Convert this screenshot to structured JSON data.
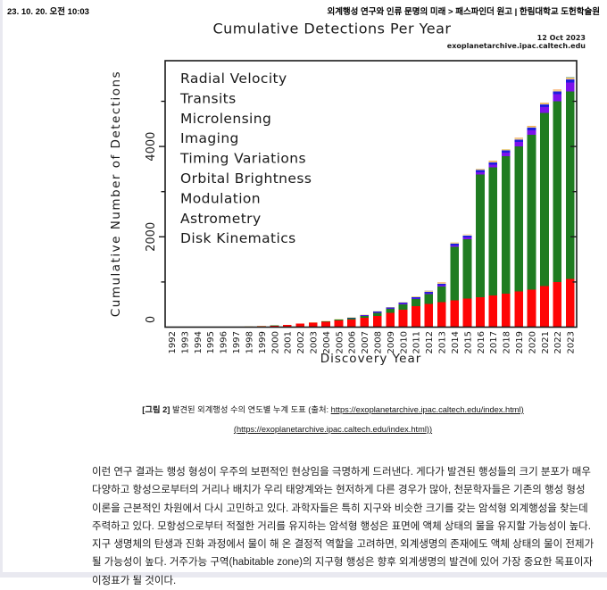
{
  "page": {
    "header_left": "23. 10. 20. 오전 10:03",
    "header_right": "외계행성 연구와 인류 문명의 미래 > 패스파인더 원고 | 한림대학교 도헌학술원"
  },
  "chart_data": {
    "type": "bar",
    "stacked": true,
    "title": "Cumulative Detections Per Year",
    "date_label": "12 Oct 2023",
    "source_label": "exoplanetarchive.ipac.caltech.edu",
    "xlabel": "Discovery Year",
    "ylabel": "Cumulative Number of Detections",
    "ylim": [
      0,
      5900
    ],
    "yticks_major": [
      0,
      2000,
      4000
    ],
    "yticks_minor": [
      1000,
      3000,
      5000
    ],
    "grid": false,
    "legend_position": "upper-left-inside",
    "categories": [
      1992,
      1993,
      1994,
      1995,
      1996,
      1997,
      1998,
      1999,
      2000,
      2001,
      2002,
      2003,
      2004,
      2005,
      2006,
      2007,
      2008,
      2009,
      2010,
      2011,
      2012,
      2013,
      2014,
      2015,
      2016,
      2017,
      2018,
      2019,
      2020,
      2021,
      2022,
      2023
    ],
    "series": [
      {
        "name": "Radial Velocity",
        "color": "#fe0505",
        "values": [
          0,
          0,
          0,
          1,
          6,
          8,
          14,
          22,
          34,
          46,
          75,
          96,
          117,
          150,
          172,
          205,
          252,
          317,
          390,
          468,
          512,
          550,
          590,
          628,
          665,
          700,
          745,
          792,
          835,
          905,
          1000,
          1068
        ]
      },
      {
        "name": "Transits",
        "color": "#1f7c21",
        "values": [
          0,
          0,
          0,
          0,
          0,
          0,
          0,
          1,
          1,
          1,
          2,
          3,
          8,
          14,
          24,
          44,
          64,
          88,
          115,
          150,
          218,
          345,
          1185,
          1315,
          2715,
          2840,
          3040,
          3215,
          3420,
          3835,
          4000,
          4150
        ]
      },
      {
        "name": "Microlensing",
        "color": "#7d12ea",
        "values": [
          0,
          0,
          0,
          0,
          0,
          0,
          0,
          0,
          0,
          0,
          0,
          0,
          1,
          3,
          5,
          7,
          10,
          13,
          15,
          19,
          24,
          30,
          37,
          44,
          52,
          62,
          77,
          92,
          107,
          132,
          155,
          200
        ]
      },
      {
        "name": "Imaging",
        "color": "#1e1ede",
        "values": [
          0,
          0,
          0,
          0,
          0,
          0,
          0,
          0,
          0,
          0,
          0,
          0,
          2,
          5,
          9,
          12,
          16,
          19,
          23,
          27,
          31,
          36,
          41,
          44,
          47,
          49,
          52,
          55,
          58,
          61,
          63,
          68
        ]
      },
      {
        "name": "Timing Variations",
        "color": "#ecd28d",
        "values": [
          2,
          3,
          4,
          4,
          4,
          4,
          4,
          5,
          5,
          6,
          6,
          7,
          7,
          7,
          8,
          9,
          10,
          11,
          13,
          15,
          17,
          19,
          21,
          23,
          25,
          26,
          27,
          28,
          29,
          30,
          31,
          31
        ]
      },
      {
        "name": "Orbital Brightness Modulation",
        "color": "#f5861f",
        "values": [
          0,
          0,
          0,
          0,
          0,
          0,
          0,
          0,
          0,
          0,
          0,
          0,
          0,
          0,
          0,
          0,
          0,
          0,
          0,
          1,
          3,
          4,
          5,
          5,
          6,
          6,
          6,
          7,
          7,
          8,
          8,
          9
        ]
      },
      {
        "name": "Astrometry",
        "color": "#bcbcbc",
        "values": [
          0,
          0,
          0,
          0,
          0,
          0,
          0,
          0,
          0,
          0,
          0,
          0,
          0,
          0,
          0,
          0,
          0,
          0,
          1,
          1,
          1,
          1,
          1,
          1,
          1,
          1,
          1,
          1,
          1,
          2,
          2,
          3
        ]
      },
      {
        "name": "Disk Kinematics",
        "color": "#3fa18c",
        "values": [
          0,
          0,
          0,
          0,
          0,
          0,
          0,
          0,
          0,
          0,
          0,
          0,
          0,
          0,
          0,
          0,
          0,
          0,
          0,
          0,
          0,
          0,
          0,
          0,
          0,
          0,
          0,
          1,
          1,
          1,
          1,
          1
        ]
      }
    ],
    "legend_lines": [
      {
        "text": "Radial Velocity",
        "color": "#f94242"
      },
      {
        "text": "Transits",
        "color": "#217a21"
      },
      {
        "text": "Microlensing",
        "color": "#8428e8"
      },
      {
        "text": "Imaging",
        "color": "#2626dd"
      },
      {
        "text": "Timing Variations",
        "color": "#e9d491"
      },
      {
        "text": "Orbital Brightness",
        "color": "#f5861f"
      },
      {
        "text": "Modulation",
        "color": "#f5861f"
      },
      {
        "text": "Astrometry",
        "color": "#bcbcbc"
      },
      {
        "text": "Disk Kinematics",
        "color": "#45a58d"
      }
    ]
  },
  "caption": {
    "bold_prefix": "[그림 2]",
    "text": " 발견된 외계행성 수의 연도별 누계 도표 (출처: ",
    "link_line1": "https://exoplanetarchive.ipac.caltech.edu/index.html)",
    "link_line2": "(https://exoplanetarchive.ipac.caltech.edu/index.html))"
  },
  "body": {
    "lines": [
      "이런 연구 결과는 행성 형성이 우주의 보편적인 현상임을 극명하게 드러낸다. 게다가 발견된 행성들의 크기 분포가 매우",
      "다양하고 항성으로부터의 거리나 배치가 우리 태양계와는 현저하게 다른 경우가 많아, 천문학자들은 기존의 행성 형성",
      "이론을 근본적인 차원에서 다시 고민하고 있다. 과학자들은 특히 지구와 비슷한 크기를 갖는 암석형 외계행성을 찾는데",
      "주력하고 있다. 모항성으로부터 적절한 거리를 유지하는 암석형 행성은 표면에 액체 상태의 물을 유지할 가능성이 높다.",
      "지구 생명체의 탄생과 진화 과정에서 물이 해 온 결정적 역할을 고려하면, 외계생명의 존재에도 액체 상태의 물이 전제가",
      "될 가능성이 높다. 거주가능 구역(habitable zone)의 지구형 행성은 향후 외계생명의 발견에 있어 가장 중요한 목표이자",
      "이정표가 될 것이다."
    ]
  }
}
